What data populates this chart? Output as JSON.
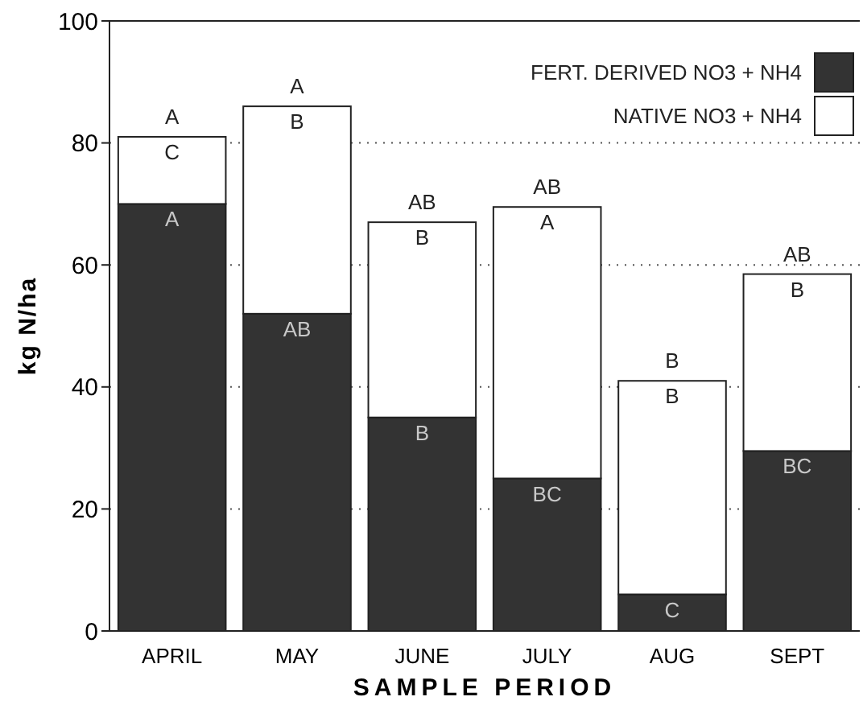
{
  "chart_data": {
    "type": "bar",
    "stacked": true,
    "xlabel": "SAMPLE PERIOD",
    "ylabel": "kg N/ha",
    "categories": [
      "APRIL",
      "MAY",
      "JUNE",
      "JULY",
      "AUG",
      "SEPT"
    ],
    "series": [
      {
        "name": "FERT. DERIVED NO3 +  NH4",
        "color": "#333333",
        "values": [
          70,
          52,
          35,
          25,
          6,
          29.5
        ]
      },
      {
        "name": "NATIVE NO3 +  NH4",
        "color": "#ffffff",
        "values": [
          11,
          34,
          32,
          44.5,
          35,
          29
        ]
      }
    ],
    "ylim": [
      0,
      100
    ],
    "yticks": [
      0,
      20,
      40,
      60,
      80,
      100
    ],
    "grid": "y",
    "legend": "top right",
    "annotations": [
      {
        "text": "C",
        "x": "APRIL",
        "y": 81
      },
      {
        "text": "A",
        "x": "APRIL",
        "y": 81
      },
      {
        "text": "A",
        "x": "APRIL",
        "y": 70
      },
      {
        "text": "B",
        "x": "MAY",
        "y": 86
      },
      {
        "text": "A",
        "x": "MAY",
        "y": 86
      },
      {
        "text": "AB",
        "x": "MAY",
        "y": 52
      },
      {
        "text": "B",
        "x": "JUNE",
        "y": 67
      },
      {
        "text": "AB",
        "x": "JUNE",
        "y": 67
      },
      {
        "text": "B",
        "x": "JUNE",
        "y": 35
      },
      {
        "text": "A",
        "x": "JULY",
        "y": 69.5
      },
      {
        "text": "AB",
        "x": "JULY",
        "y": 69.5
      },
      {
        "text": "BC",
        "x": "JULY",
        "y": 25
      },
      {
        "text": "B",
        "x": "AUG",
        "y": 41
      },
      {
        "text": "B",
        "x": "AUG",
        "y": 41
      },
      {
        "text": "C",
        "x": "AUG",
        "y": 6
      },
      {
        "text": "B",
        "x": "SEPT",
        "y": 58.5
      },
      {
        "text": "AB",
        "x": "SEPT",
        "y": 58.5
      },
      {
        "text": "BC",
        "x": "SEPT",
        "y": 29.5
      }
    ]
  }
}
